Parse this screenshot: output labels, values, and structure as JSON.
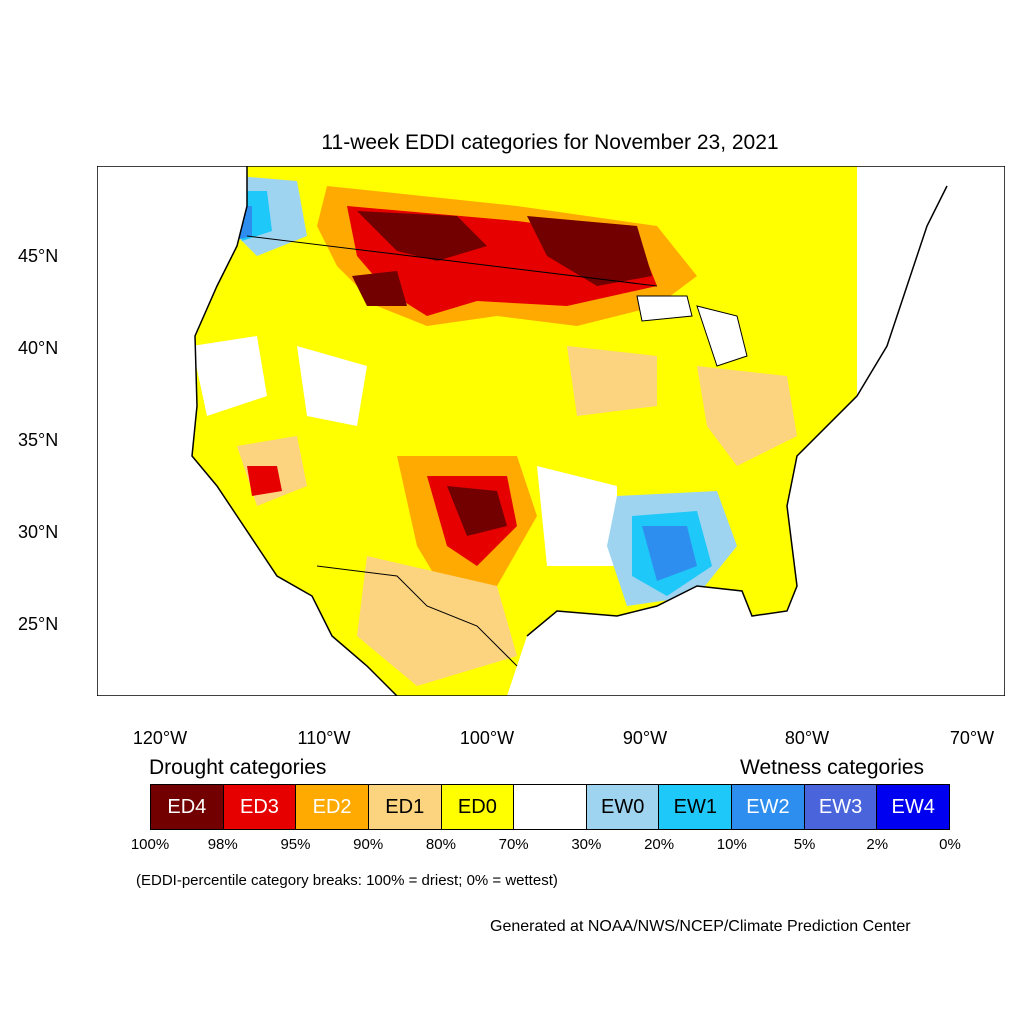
{
  "title": "11-week EDDI categories for November 23, 2021",
  "map": {
    "lon_labels": [
      "120°W",
      "110°W",
      "100°W",
      "90°W",
      "80°W",
      "70°W"
    ],
    "lat_labels": [
      "45°N",
      "40°N",
      "35°N",
      "30°N",
      "25°N"
    ]
  },
  "legend": {
    "drought_title": "Drought categories",
    "wetness_title": "Wetness categories",
    "categories": [
      {
        "label": "ED4",
        "color": "#730000",
        "text_color": "#ffffff"
      },
      {
        "label": "ED3",
        "color": "#e60000",
        "text_color": "#ffffff"
      },
      {
        "label": "ED2",
        "color": "#ffaa00",
        "text_color": "#ffffff"
      },
      {
        "label": "ED1",
        "color": "#fcd37f",
        "text_color": "#000000"
      },
      {
        "label": "ED0",
        "color": "#ffff00",
        "text_color": "#000000"
      },
      {
        "label": "",
        "color": "#ffffff",
        "text_color": "#000000"
      },
      {
        "label": "EW0",
        "color": "#9fd4f0",
        "text_color": "#000000"
      },
      {
        "label": "EW1",
        "color": "#1ec8f8",
        "text_color": "#000000"
      },
      {
        "label": "EW2",
        "color": "#2e8ef0",
        "text_color": "#ffffff"
      },
      {
        "label": "EW3",
        "color": "#4a64dc",
        "text_color": "#ffffff"
      },
      {
        "label": "EW4",
        "color": "#0000f0",
        "text_color": "#ffffff"
      }
    ],
    "percent_breaks": [
      "100%",
      "98%",
      "95%",
      "90%",
      "80%",
      "70%",
      "30%",
      "20%",
      "10%",
      "5%",
      "2%",
      "0%"
    ]
  },
  "note": "(EDDI-percentile category breaks: 100% = driest; 0% = wettest)",
  "credit": "Generated at NOAA/NWS/NCEP/Climate Prediction Center"
}
